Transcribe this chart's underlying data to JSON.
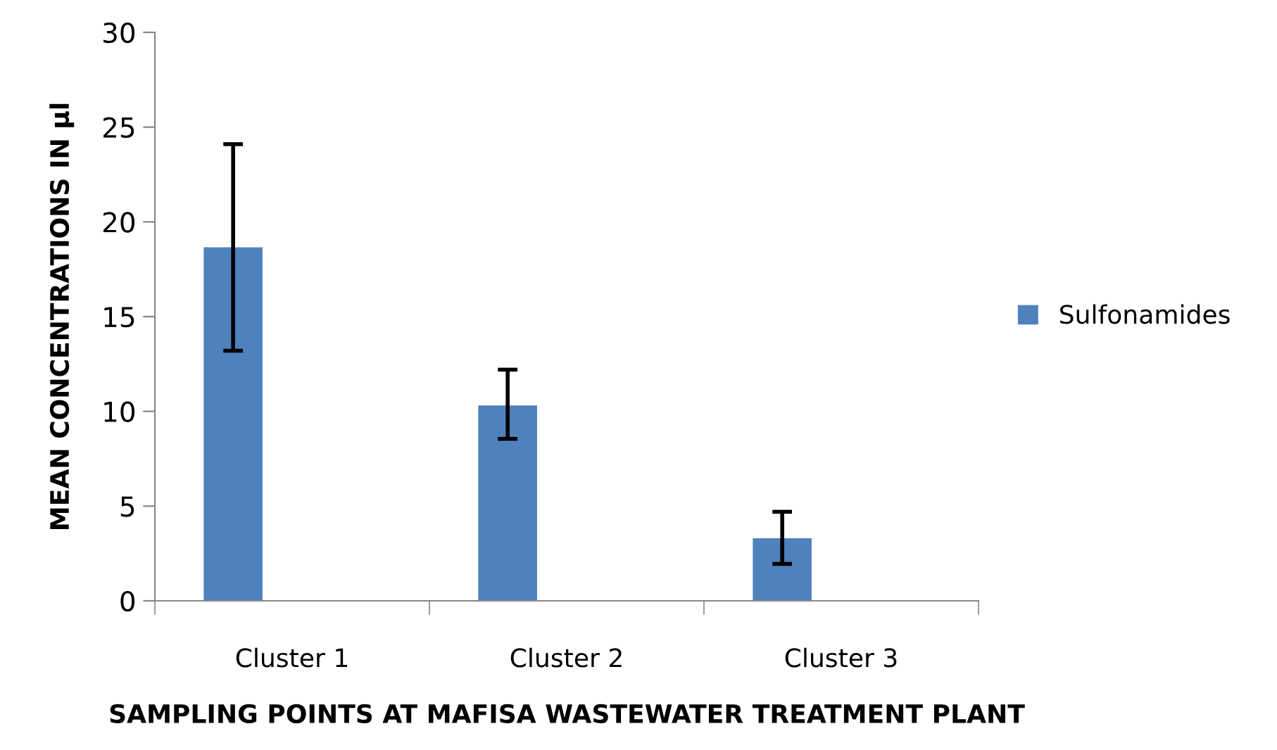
{
  "chart_data": {
    "type": "bar",
    "xlabel": "SAMPLING POINTS AT MAFISA WASTEWATER TREATMENT PLANT",
    "ylabel": "MEAN CONCENTRATIONS IN μl",
    "categories": [
      "Cluster 1",
      "Cluster 2",
      "Cluster 3"
    ],
    "series": [
      {
        "name": "Sulfonamides",
        "color": "#4f81bd",
        "values": [
          18.7,
          10.35,
          3.35
        ],
        "errors": [
          [
            13.2,
            24.1
          ],
          [
            8.55,
            12.2
          ],
          [
            1.95,
            4.7
          ]
        ]
      }
    ],
    "ylim": [
      0,
      30
    ],
    "yticks": [
      0,
      5,
      10,
      15,
      20,
      25,
      30
    ],
    "grid": false,
    "legend": "right"
  }
}
